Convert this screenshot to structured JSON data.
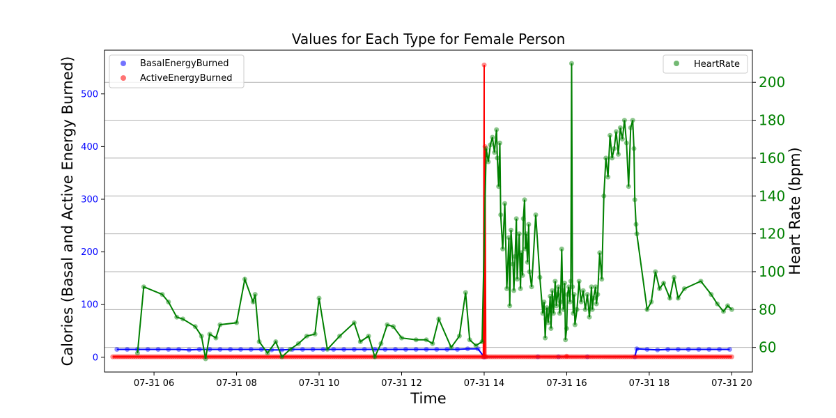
{
  "chart_data": {
    "type": "line",
    "title": "Values for Each Type for Female Person",
    "xlabel": "Time",
    "ylabel": "Calories (Basal and Active Energy Burned)",
    "y2label": "Heart Rate (bpm)",
    "x_range_hours": [
      4.8,
      20.5
    ],
    "x_ticks": [
      {
        "value": 6,
        "label": "07-31 06"
      },
      {
        "value": 8,
        "label": "07-31 08"
      },
      {
        "value": 10,
        "label": "07-31 10"
      },
      {
        "value": 12,
        "label": "07-31 12"
      },
      {
        "value": 14,
        "label": "07-31 14"
      },
      {
        "value": 16,
        "label": "07-31 16"
      },
      {
        "value": 18,
        "label": "07-31 18"
      },
      {
        "value": 20,
        "label": "07-31 20"
      }
    ],
    "ylim_left": [
      -28,
      583
    ],
    "y_ticks_left": [
      0,
      100,
      200,
      300,
      400,
      500
    ],
    "ylim_right": [
      47,
      217
    ],
    "y_ticks_right": [
      60,
      80,
      100,
      120,
      140,
      160,
      180,
      200
    ],
    "grid": "horizontal lines at right-axis ticks",
    "legends": {
      "left": {
        "placement": "upper-left",
        "entries": [
          "BasalEnergyBurned",
          "ActiveEnergyBurned"
        ]
      },
      "right": {
        "placement": "upper-right",
        "entries": [
          "HeartRate"
        ]
      }
    },
    "colors": {
      "basal": "#0000ff",
      "active": "#ff0000",
      "heart": "#008000",
      "left_tick": "#0000ff",
      "right_tick": "#008000"
    },
    "series": [
      {
        "name": "BasalEnergyBurned",
        "axis": "left",
        "color": "#0000ff",
        "points": [
          [
            5.1,
            15
          ],
          [
            5.35,
            15
          ],
          [
            5.6,
            15
          ],
          [
            5.85,
            15
          ],
          [
            6.1,
            15
          ],
          [
            6.35,
            15
          ],
          [
            6.6,
            15
          ],
          [
            6.85,
            14
          ],
          [
            7.1,
            15
          ],
          [
            7.35,
            15
          ],
          [
            7.6,
            15
          ],
          [
            7.85,
            15
          ],
          [
            8.1,
            15
          ],
          [
            8.35,
            15
          ],
          [
            8.6,
            15
          ],
          [
            8.85,
            14
          ],
          [
            9.1,
            14
          ],
          [
            9.35,
            15
          ],
          [
            9.6,
            15
          ],
          [
            9.85,
            15
          ],
          [
            10.1,
            15
          ],
          [
            10.35,
            15
          ],
          [
            10.6,
            15
          ],
          [
            10.85,
            15
          ],
          [
            11.1,
            15
          ],
          [
            11.35,
            15
          ],
          [
            11.6,
            15
          ],
          [
            11.85,
            15
          ],
          [
            12.1,
            15
          ],
          [
            12.35,
            15
          ],
          [
            12.6,
            15
          ],
          [
            12.85,
            15
          ],
          [
            13.1,
            15
          ],
          [
            13.35,
            15
          ],
          [
            13.6,
            16
          ],
          [
            13.85,
            16
          ],
          [
            14.0,
            0.5
          ],
          [
            15.3,
            1
          ],
          [
            15.8,
            1
          ],
          [
            16.5,
            1
          ],
          [
            17.65,
            1
          ],
          [
            17.7,
            16
          ],
          [
            17.95,
            15
          ],
          [
            18.2,
            14
          ],
          [
            18.45,
            15
          ],
          [
            18.7,
            15
          ],
          [
            18.95,
            15
          ],
          [
            19.2,
            15
          ],
          [
            19.45,
            15
          ],
          [
            19.7,
            15
          ],
          [
            19.95,
            15
          ]
        ]
      },
      {
        "name": "ActiveEnergyBurned",
        "axis": "left",
        "color": "#ff0000",
        "baseline": 1,
        "baseline_start": 5.0,
        "baseline_end": 20.0,
        "baseline_step": 0.05,
        "points": [
          [
            13.98,
            1
          ],
          [
            14.0,
            555
          ],
          [
            14.02,
            400
          ],
          [
            14.04,
            1
          ],
          [
            16.0,
            2
          ]
        ]
      },
      {
        "name": "HeartRate",
        "axis": "right",
        "color": "#008000",
        "points": [
          [
            5.6,
            57
          ],
          [
            5.75,
            92
          ],
          [
            6.2,
            88
          ],
          [
            6.35,
            84
          ],
          [
            6.55,
            76
          ],
          [
            6.7,
            75
          ],
          [
            7.0,
            71
          ],
          [
            7.15,
            66
          ],
          [
            7.25,
            54
          ],
          [
            7.35,
            67
          ],
          [
            7.5,
            65
          ],
          [
            7.6,
            72
          ],
          [
            8.0,
            73
          ],
          [
            8.2,
            96
          ],
          [
            8.4,
            84
          ],
          [
            8.45,
            88
          ],
          [
            8.55,
            63
          ],
          [
            8.75,
            57
          ],
          [
            8.95,
            63
          ],
          [
            9.1,
            55
          ],
          [
            9.3,
            59
          ],
          [
            9.5,
            62
          ],
          [
            9.7,
            66
          ],
          [
            9.9,
            67
          ],
          [
            10.0,
            86
          ],
          [
            10.2,
            59
          ],
          [
            10.5,
            66
          ],
          [
            10.85,
            73
          ],
          [
            11.0,
            63
          ],
          [
            11.2,
            66
          ],
          [
            11.35,
            55
          ],
          [
            11.5,
            62
          ],
          [
            11.65,
            72
          ],
          [
            11.8,
            71
          ],
          [
            12.0,
            65
          ],
          [
            12.35,
            64
          ],
          [
            12.6,
            64
          ],
          [
            12.75,
            62
          ],
          [
            12.9,
            75
          ],
          [
            13.2,
            60
          ],
          [
            13.4,
            66
          ],
          [
            13.55,
            89
          ],
          [
            13.65,
            64
          ],
          [
            13.8,
            61
          ],
          [
            13.95,
            63
          ],
          [
            14.05,
            165
          ],
          [
            14.1,
            158
          ],
          [
            14.15,
            167
          ],
          [
            14.2,
            171
          ],
          [
            14.25,
            163
          ],
          [
            14.3,
            175
          ],
          [
            14.32,
            160
          ],
          [
            14.35,
            145
          ],
          [
            14.38,
            168
          ],
          [
            14.4,
            130
          ],
          [
            14.45,
            112
          ],
          [
            14.5,
            136
          ],
          [
            14.55,
            91
          ],
          [
            14.6,
            118
          ],
          [
            14.62,
            82
          ],
          [
            14.65,
            122
          ],
          [
            14.7,
            104
          ],
          [
            14.72,
            90
          ],
          [
            14.75,
            108
          ],
          [
            14.78,
            128
          ],
          [
            14.8,
            96
          ],
          [
            14.85,
            120
          ],
          [
            14.88,
            91
          ],
          [
            14.9,
            110
          ],
          [
            14.93,
            98
          ],
          [
            14.95,
            128
          ],
          [
            14.98,
            138
          ],
          [
            15.0,
            112
          ],
          [
            15.02,
            120
          ],
          [
            15.05,
            105
          ],
          [
            15.08,
            125
          ],
          [
            15.1,
            100
          ],
          [
            15.15,
            92
          ],
          [
            15.25,
            130
          ],
          [
            15.35,
            97
          ],
          [
            15.42,
            78
          ],
          [
            15.45,
            84
          ],
          [
            15.48,
            65
          ],
          [
            15.5,
            75
          ],
          [
            15.52,
            81
          ],
          [
            15.55,
            73
          ],
          [
            15.58,
            80
          ],
          [
            15.6,
            87
          ],
          [
            15.62,
            70
          ],
          [
            15.65,
            90
          ],
          [
            15.68,
            78
          ],
          [
            15.7,
            86
          ],
          [
            15.72,
            95
          ],
          [
            15.75,
            82
          ],
          [
            15.78,
            88
          ],
          [
            15.8,
            92
          ],
          [
            15.83,
            78
          ],
          [
            15.85,
            84
          ],
          [
            15.88,
            112
          ],
          [
            15.9,
            90
          ],
          [
            15.92,
            80
          ],
          [
            15.95,
            94
          ],
          [
            15.97,
            64
          ],
          [
            16.0,
            70
          ],
          [
            16.02,
            88
          ],
          [
            16.05,
            92
          ],
          [
            16.08,
            84
          ],
          [
            16.1,
            95
          ],
          [
            16.12,
            210
          ],
          [
            16.14,
            92
          ],
          [
            16.16,
            78
          ],
          [
            16.18,
            88
          ],
          [
            16.2,
            72
          ],
          [
            16.25,
            80
          ],
          [
            16.3,
            95
          ],
          [
            16.35,
            84
          ],
          [
            16.4,
            90
          ],
          [
            16.45,
            80
          ],
          [
            16.5,
            88
          ],
          [
            16.55,
            76
          ],
          [
            16.6,
            92
          ],
          [
            16.62,
            80
          ],
          [
            16.65,
            86
          ],
          [
            16.7,
            92
          ],
          [
            16.72,
            83
          ],
          [
            16.75,
            88
          ],
          [
            16.8,
            110
          ],
          [
            16.85,
            96
          ],
          [
            16.9,
            140
          ],
          [
            16.95,
            160
          ],
          [
            17.0,
            150
          ],
          [
            17.05,
            172
          ],
          [
            17.1,
            160
          ],
          [
            17.15,
            165
          ],
          [
            17.2,
            174
          ],
          [
            17.25,
            162
          ],
          [
            17.3,
            176
          ],
          [
            17.35,
            170
          ],
          [
            17.4,
            180
          ],
          [
            17.45,
            168
          ],
          [
            17.5,
            145
          ],
          [
            17.55,
            176
          ],
          [
            17.6,
            180
          ],
          [
            17.63,
            165
          ],
          [
            17.65,
            138
          ],
          [
            17.68,
            125
          ],
          [
            17.7,
            120
          ],
          [
            17.95,
            80
          ],
          [
            18.05,
            84
          ],
          [
            18.15,
            100
          ],
          [
            18.25,
            91
          ],
          [
            18.35,
            94
          ],
          [
            18.5,
            86
          ],
          [
            18.6,
            97
          ],
          [
            18.7,
            86
          ],
          [
            18.85,
            91
          ],
          [
            19.25,
            95
          ],
          [
            19.5,
            88
          ],
          [
            19.65,
            83
          ],
          [
            19.8,
            79
          ],
          [
            19.9,
            82
          ],
          [
            20.0,
            80
          ]
        ]
      }
    ]
  }
}
